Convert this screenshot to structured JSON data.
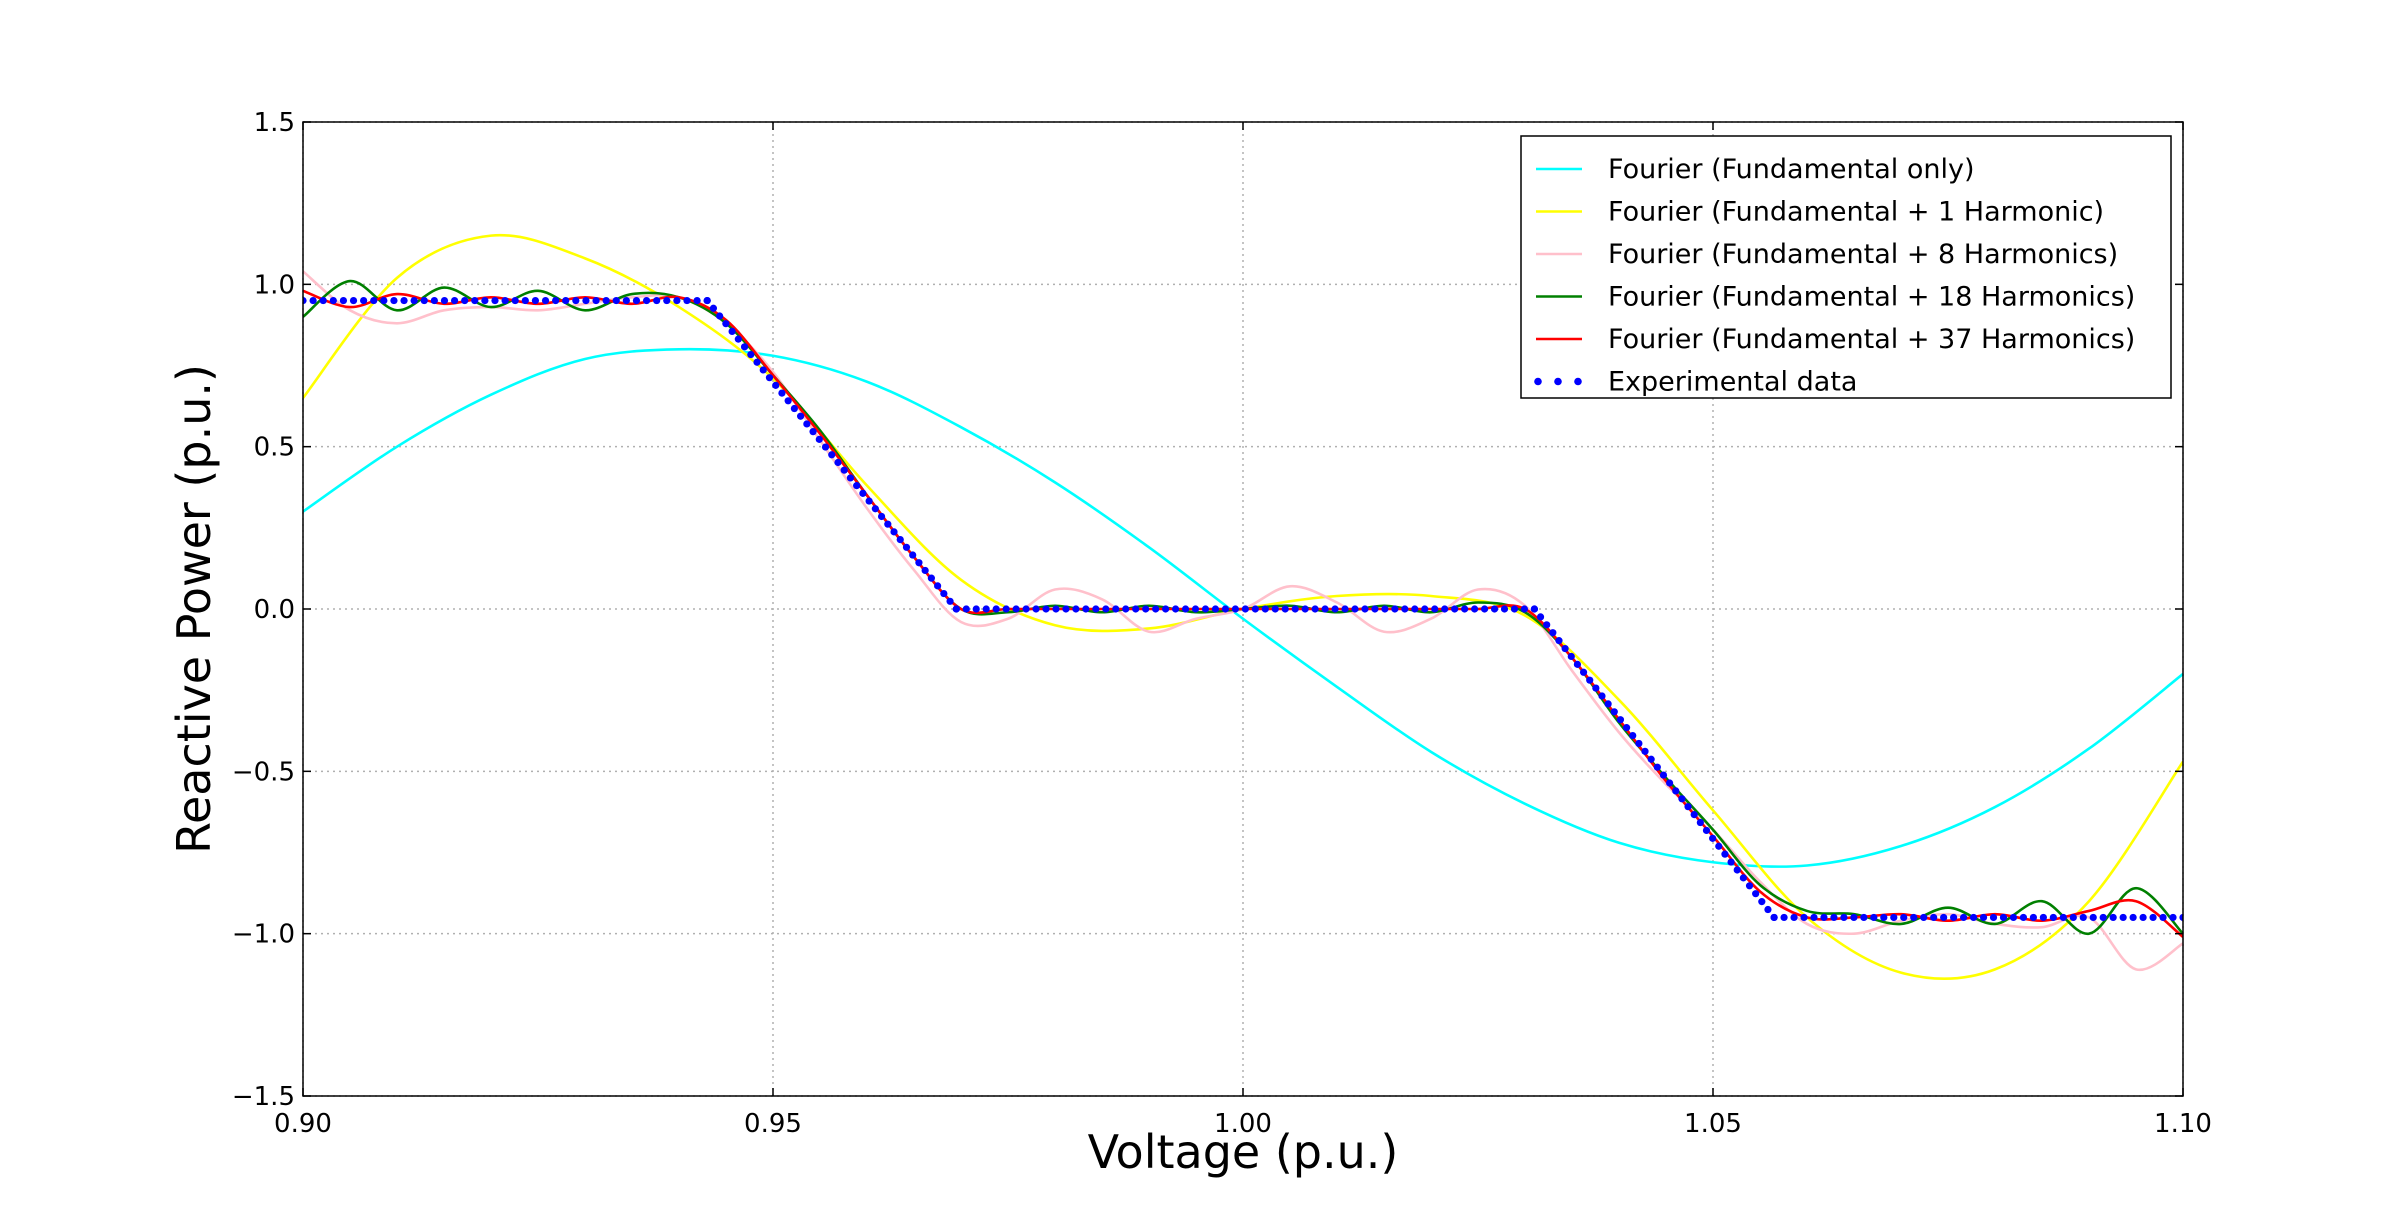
{
  "chart_data": {
    "type": "line",
    "title": "",
    "xlabel": "Voltage (p.u.)",
    "ylabel": "Reactive Power (p.u.)",
    "xlim": [
      0.9,
      1.1
    ],
    "ylim": [
      -1.5,
      1.5
    ],
    "x_ticks": [
      0.9,
      0.95,
      1.0,
      1.05,
      1.1
    ],
    "x_tick_labels": [
      "0.90",
      "0.95",
      "1.00",
      "1.05",
      "1.10"
    ],
    "y_ticks": [
      -1.5,
      -1.0,
      -0.5,
      0.0,
      0.5,
      1.0,
      1.5
    ],
    "y_tick_labels": [
      "−1.5",
      "−1.0",
      "−0.5",
      "0.0",
      "0.5",
      "1.0",
      "1.5"
    ],
    "grid": true,
    "legend_position": "top-right",
    "reference_data": {
      "name": "Experimental data",
      "description_points": [
        [
          0.9,
          0.95
        ],
        [
          0.943,
          0.95
        ],
        [
          0.9695,
          0.0
        ],
        [
          1.031,
          0.0
        ],
        [
          1.0565,
          -0.95
        ],
        [
          1.1,
          -0.95
        ]
      ]
    },
    "series": [
      {
        "name": "Fourier (Fundamental only)",
        "color": "#00ffff",
        "style": "line",
        "x": [
          0.9,
          0.91,
          0.92,
          0.93,
          0.94,
          0.95,
          0.96,
          0.97,
          0.98,
          0.99,
          1.0,
          1.01,
          1.02,
          1.03,
          1.04,
          1.05,
          1.06,
          1.07,
          1.08,
          1.09,
          1.1
        ],
        "y": [
          0.3,
          0.5,
          0.66,
          0.77,
          0.8,
          0.78,
          0.7,
          0.56,
          0.39,
          0.19,
          -0.03,
          -0.24,
          -0.44,
          -0.6,
          -0.72,
          -0.78,
          -0.79,
          -0.73,
          -0.61,
          -0.43,
          -0.2
        ]
      },
      {
        "name": "Fourier (Fundamental + 1 Harmonic)",
        "color": "#ffff00",
        "style": "line",
        "x": [
          0.9,
          0.91,
          0.92,
          0.93,
          0.94,
          0.95,
          0.96,
          0.97,
          0.98,
          0.99,
          1.0,
          1.01,
          1.02,
          1.03,
          1.04,
          1.05,
          1.06,
          1.07,
          1.08,
          1.09,
          1.1
        ],
        "y": [
          0.65,
          1.02,
          1.15,
          1.08,
          0.93,
          0.71,
          0.38,
          0.09,
          -0.05,
          -0.06,
          0.0,
          0.04,
          0.04,
          -0.02,
          -0.28,
          -0.62,
          -0.95,
          -1.12,
          -1.11,
          -0.9,
          -0.47
        ]
      },
      {
        "name": "Fourier (Fundamental + 8 Harmonics)",
        "color": "#ffc0cb",
        "style": "line",
        "x": [
          0.9,
          0.905,
          0.91,
          0.915,
          0.92,
          0.925,
          0.93,
          0.935,
          0.94,
          0.945,
          0.95,
          0.955,
          0.96,
          0.965,
          0.97,
          0.975,
          0.98,
          0.985,
          0.99,
          0.995,
          1.0,
          1.005,
          1.01,
          1.015,
          1.02,
          1.025,
          1.03,
          1.035,
          1.04,
          1.045,
          1.05,
          1.055,
          1.06,
          1.065,
          1.07,
          1.075,
          1.08,
          1.085,
          1.09,
          1.095,
          1.1
        ],
        "y": [
          1.04,
          0.92,
          0.88,
          0.92,
          0.93,
          0.92,
          0.94,
          0.96,
          0.96,
          0.88,
          0.73,
          0.52,
          0.31,
          0.12,
          -0.04,
          -0.03,
          0.06,
          0.03,
          -0.07,
          -0.03,
          0.0,
          0.07,
          0.02,
          -0.07,
          -0.03,
          0.06,
          0.01,
          -0.19,
          -0.38,
          -0.54,
          -0.68,
          -0.84,
          -0.97,
          -1.0,
          -0.96,
          -0.94,
          -0.97,
          -0.98,
          -0.95,
          -1.11,
          -1.03
        ]
      },
      {
        "name": "Fourier (Fundamental + 18 Harmonics)",
        "color": "#008000",
        "style": "line",
        "x": [
          0.9,
          0.905,
          0.91,
          0.915,
          0.92,
          0.925,
          0.93,
          0.935,
          0.94,
          0.945,
          0.95,
          0.955,
          0.96,
          0.965,
          0.97,
          0.975,
          0.98,
          0.985,
          0.99,
          0.995,
          1.0,
          1.005,
          1.01,
          1.015,
          1.02,
          1.025,
          1.03,
          1.035,
          1.04,
          1.045,
          1.05,
          1.055,
          1.06,
          1.065,
          1.07,
          1.075,
          1.08,
          1.085,
          1.09,
          1.095,
          1.1
        ],
        "y": [
          0.9,
          1.01,
          0.92,
          0.99,
          0.93,
          0.98,
          0.92,
          0.97,
          0.96,
          0.88,
          0.72,
          0.55,
          0.35,
          0.16,
          0.0,
          -0.01,
          0.01,
          -0.01,
          0.01,
          -0.01,
          0.0,
          0.01,
          -0.01,
          0.01,
          -0.01,
          0.02,
          -0.01,
          -0.15,
          -0.35,
          -0.52,
          -0.68,
          -0.85,
          -0.93,
          -0.94,
          -0.97,
          -0.92,
          -0.97,
          -0.9,
          -1.0,
          -0.86,
          -1.0
        ]
      },
      {
        "name": "Fourier (Fundamental + 37 Harmonics)",
        "color": "#ff0000",
        "style": "line",
        "x": [
          0.9,
          0.905,
          0.91,
          0.915,
          0.92,
          0.925,
          0.93,
          0.935,
          0.94,
          0.945,
          0.95,
          0.955,
          0.96,
          0.965,
          0.97,
          0.975,
          0.98,
          0.985,
          0.99,
          0.995,
          1.0,
          1.005,
          1.01,
          1.015,
          1.02,
          1.025,
          1.03,
          1.035,
          1.04,
          1.045,
          1.05,
          1.055,
          1.06,
          1.065,
          1.07,
          1.075,
          1.08,
          1.085,
          1.09,
          1.095,
          1.1
        ],
        "y": [
          0.98,
          0.93,
          0.97,
          0.94,
          0.96,
          0.94,
          0.96,
          0.94,
          0.96,
          0.89,
          0.72,
          0.54,
          0.35,
          0.16,
          0.0,
          0.0,
          0.0,
          0.0,
          0.0,
          0.0,
          0.0,
          0.0,
          0.0,
          0.0,
          0.0,
          0.0,
          0.0,
          -0.15,
          -0.34,
          -0.53,
          -0.7,
          -0.87,
          -0.95,
          -0.95,
          -0.94,
          -0.96,
          -0.94,
          -0.96,
          -0.93,
          -0.9,
          -1.01
        ]
      },
      {
        "name": "Experimental data",
        "color": "#0000ff",
        "style": "dots",
        "x": [
          0.9,
          0.943,
          0.9695,
          1.031,
          1.0565,
          1.1
        ],
        "y": [
          0.95,
          0.95,
          0.0,
          0.0,
          -0.95,
          -0.95
        ]
      }
    ]
  }
}
